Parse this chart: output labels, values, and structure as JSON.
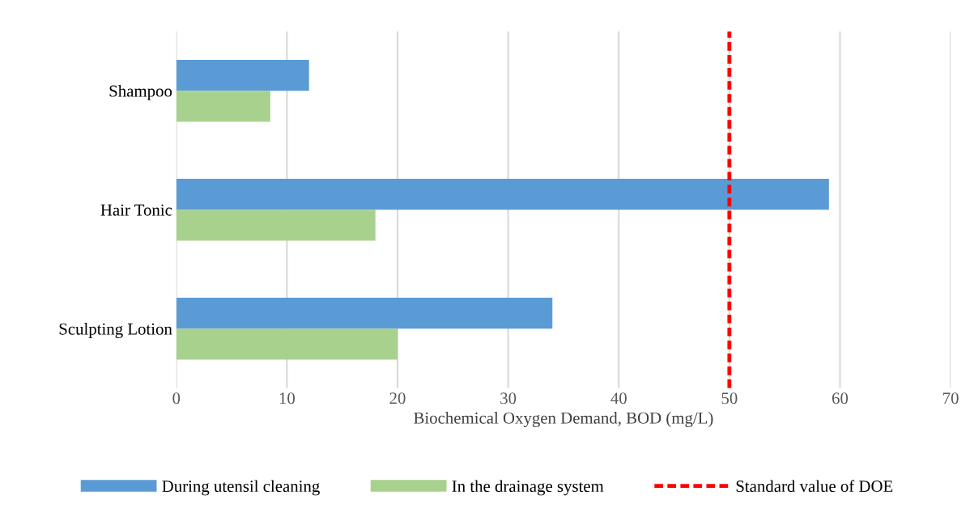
{
  "chart_data": {
    "type": "bar",
    "orientation": "horizontal",
    "xlabel": "Biochemical Oxygen Demand, BOD (mg/L)",
    "categories": [
      "Shampoo",
      "Hair Tonic",
      "Sculpting Lotion"
    ],
    "series": [
      {
        "name": "During utensil cleaning",
        "color": "#5b9bd5",
        "values": [
          12,
          59,
          34
        ]
      },
      {
        "name": "In the drainage system",
        "color": "#a9d18e",
        "values": [
          8.5,
          18,
          20
        ]
      }
    ],
    "xlim": [
      0,
      70
    ],
    "xticks": [
      0,
      10,
      20,
      30,
      40,
      50,
      60,
      70
    ],
    "grid": "x",
    "legend": "bottom",
    "ref_lines": [
      {
        "axis": "x",
        "value": 50,
        "label": "Standard value of DOE",
        "color": "#ff0000",
        "line_style": "dashed"
      }
    ]
  }
}
